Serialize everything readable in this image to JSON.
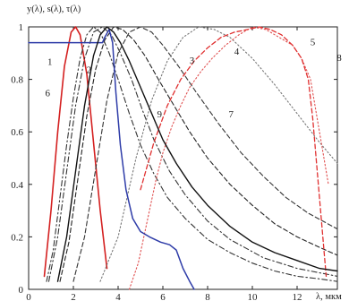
{
  "chart_data": {
    "type": "line",
    "title": "",
    "ylabel": "y(λ), s(λ), τ(λ)",
    "xlabel": "λ, мкм",
    "xlim": [
      0,
      13.8
    ],
    "ylim": [
      0,
      1
    ],
    "x_ticks": [
      0,
      2,
      4,
      6,
      8,
      10,
      12
    ],
    "y_ticks": [
      0,
      0.2,
      0.4,
      0.6,
      0.8,
      1
    ],
    "grid": false,
    "legend": "none",
    "series": [
      {
        "name": "1",
        "color": "#d42020",
        "dash": "solid",
        "width": 1.6,
        "x": [
          0.7,
          1.0,
          1.3,
          1.6,
          1.9,
          2.1,
          2.3,
          2.6,
          2.9,
          3.2,
          3.5
        ],
        "y": [
          0.05,
          0.3,
          0.6,
          0.85,
          0.98,
          1.0,
          0.97,
          0.82,
          0.56,
          0.3,
          0.08
        ]
      },
      {
        "name": "2",
        "color": "#333333",
        "dash": "dashdot",
        "width": 1.1,
        "x": [
          0.9,
          1.3,
          1.7,
          2.1,
          2.5,
          2.9,
          3.3,
          3.7,
          4.1,
          4.6,
          5.1,
          5.6,
          6.3,
          7.0,
          8.0,
          9.0,
          10.5,
          12.0,
          13.8
        ],
        "y": [
          0.03,
          0.2,
          0.45,
          0.7,
          0.88,
          0.98,
          1.0,
          0.97,
          0.9,
          0.8,
          0.68,
          0.57,
          0.45,
          0.36,
          0.26,
          0.19,
          0.12,
          0.08,
          0.05
        ]
      },
      {
        "name": "3",
        "color": "#222222",
        "dash": "dashed",
        "width": 1.1,
        "x": [
          1.4,
          1.8,
          2.2,
          2.6,
          3.0,
          3.4,
          3.8,
          4.2,
          4.7,
          5.2,
          5.8,
          6.5,
          7.2,
          8.0,
          9.0,
          10.0,
          11.0,
          12.0,
          13.0,
          13.8
        ],
        "y": [
          0.03,
          0.18,
          0.42,
          0.66,
          0.84,
          0.95,
          1.0,
          0.99,
          0.95,
          0.89,
          0.8,
          0.7,
          0.6,
          0.5,
          0.4,
          0.32,
          0.25,
          0.2,
          0.16,
          0.13
        ]
      },
      {
        "name": "4",
        "color": "#333333",
        "dash": "dashed",
        "width": 1.1,
        "x": [
          2.0,
          2.5,
          3.0,
          3.5,
          4.0,
          4.5,
          5.0,
          5.5,
          6.0,
          6.7,
          7.5,
          8.5,
          9.5,
          10.5,
          11.5,
          12.5,
          13.8
        ],
        "y": [
          0.03,
          0.2,
          0.46,
          0.72,
          0.9,
          0.98,
          1.0,
          0.98,
          0.93,
          0.85,
          0.75,
          0.63,
          0.52,
          0.43,
          0.35,
          0.29,
          0.23
        ]
      },
      {
        "name": "5",
        "color": "#777777",
        "dash": "dotted",
        "width": 1.1,
        "x": [
          3.2,
          4.0,
          4.8,
          5.5,
          6.2,
          6.9,
          7.6,
          8.3,
          9.0,
          10.0,
          11.0,
          12.0,
          13.0,
          13.8
        ],
        "y": [
          0.03,
          0.2,
          0.5,
          0.72,
          0.87,
          0.96,
          1.0,
          0.99,
          0.96,
          0.88,
          0.78,
          0.67,
          0.56,
          0.48
        ]
      },
      {
        "name": "6",
        "color": "#333333",
        "dash": "dashdot",
        "width": 1.1,
        "x": [
          0.8,
          1.1,
          1.4,
          1.7,
          2.0,
          2.3,
          2.6,
          2.9,
          3.2,
          3.6,
          4.0,
          4.5,
          5.0,
          5.6,
          6.2,
          7.0,
          8.0,
          9.0,
          10.0,
          11.0,
          12.0,
          13.0,
          13.8
        ],
        "y": [
          0.03,
          0.15,
          0.35,
          0.55,
          0.73,
          0.88,
          0.97,
          1.0,
          0.98,
          0.9,
          0.8,
          0.67,
          0.55,
          0.44,
          0.35,
          0.27,
          0.19,
          0.14,
          0.1,
          0.07,
          0.05,
          0.04,
          0.03
        ]
      },
      {
        "name": "7",
        "color": "#e05050",
        "dash": "dotted",
        "width": 1.1,
        "x": [
          4.5,
          4.9,
          5.3,
          5.7,
          6.0,
          6.4,
          6.8,
          7.2,
          7.7,
          8.2,
          8.8,
          9.4,
          10.0,
          10.6,
          11.2,
          11.8,
          12.2,
          12.6,
          13.0,
          13.4
        ],
        "y": [
          0.0,
          0.1,
          0.26,
          0.42,
          0.52,
          0.62,
          0.7,
          0.77,
          0.83,
          0.88,
          0.93,
          0.97,
          1.0,
          0.99,
          0.96,
          0.93,
          0.88,
          0.8,
          0.6,
          0.4
        ]
      },
      {
        "name": "8",
        "color": "#e03030",
        "dash": "dashed",
        "width": 1.3,
        "x": [
          5.0,
          5.6,
          6.2,
          6.8,
          7.4,
          8.0,
          8.6,
          9.2,
          9.8,
          10.3,
          10.8,
          11.3,
          11.8,
          12.2,
          12.5,
          12.7,
          12.9,
          13.1,
          13.3
        ],
        "y": [
          0.38,
          0.56,
          0.7,
          0.8,
          0.87,
          0.92,
          0.96,
          0.98,
          0.99,
          1.0,
          0.99,
          0.97,
          0.93,
          0.88,
          0.8,
          0.65,
          0.45,
          0.25,
          0.05
        ]
      },
      {
        "name": "9",
        "color": "#2e3ca8",
        "dash": "solid",
        "width": 1.5,
        "x": [
          0.0,
          3.3,
          3.4,
          3.6,
          3.75,
          3.9,
          4.1,
          4.35,
          4.65,
          5.0,
          5.4,
          5.9,
          6.3,
          6.6,
          6.9,
          7.2,
          7.4
        ],
        "y": [
          0.94,
          0.94,
          0.96,
          0.99,
          0.94,
          0.75,
          0.55,
          0.38,
          0.27,
          0.22,
          0.2,
          0.18,
          0.17,
          0.15,
          0.08,
          0.03,
          0.0
        ]
      },
      {
        "name": "",
        "color": "#111111",
        "dash": "solid",
        "width": 1.4,
        "x": [
          1.3,
          1.7,
          2.1,
          2.5,
          2.9,
          3.2,
          3.5,
          3.8,
          4.1,
          4.5,
          5.0,
          5.5,
          6.0,
          6.6,
          7.3,
          8.0,
          9.0,
          10.0,
          11.0,
          12.0,
          13.0,
          13.8
        ],
        "y": [
          0.03,
          0.2,
          0.45,
          0.7,
          0.89,
          0.97,
          1.0,
          0.98,
          0.94,
          0.87,
          0.77,
          0.67,
          0.57,
          0.48,
          0.39,
          0.32,
          0.24,
          0.18,
          0.14,
          0.11,
          0.08,
          0.07
        ]
      }
    ],
    "annotations": [
      {
        "text": "1",
        "x": 0.95,
        "y": 0.855
      },
      {
        "text": "2",
        "x": 2.7,
        "y": 0.825
      },
      {
        "text": "3",
        "x": 7.3,
        "y": 0.86
      },
      {
        "text": "4",
        "x": 9.3,
        "y": 0.895
      },
      {
        "text": "5",
        "x": 12.7,
        "y": 0.93
      },
      {
        "text": "6",
        "x": 0.85,
        "y": 0.735
      },
      {
        "text": "7",
        "x": 9.05,
        "y": 0.655
      },
      {
        "text": "8",
        "x": 14.3,
        "y": 0.87
      },
      {
        "text": "9",
        "x": 5.85,
        "y": 0.655
      }
    ]
  }
}
